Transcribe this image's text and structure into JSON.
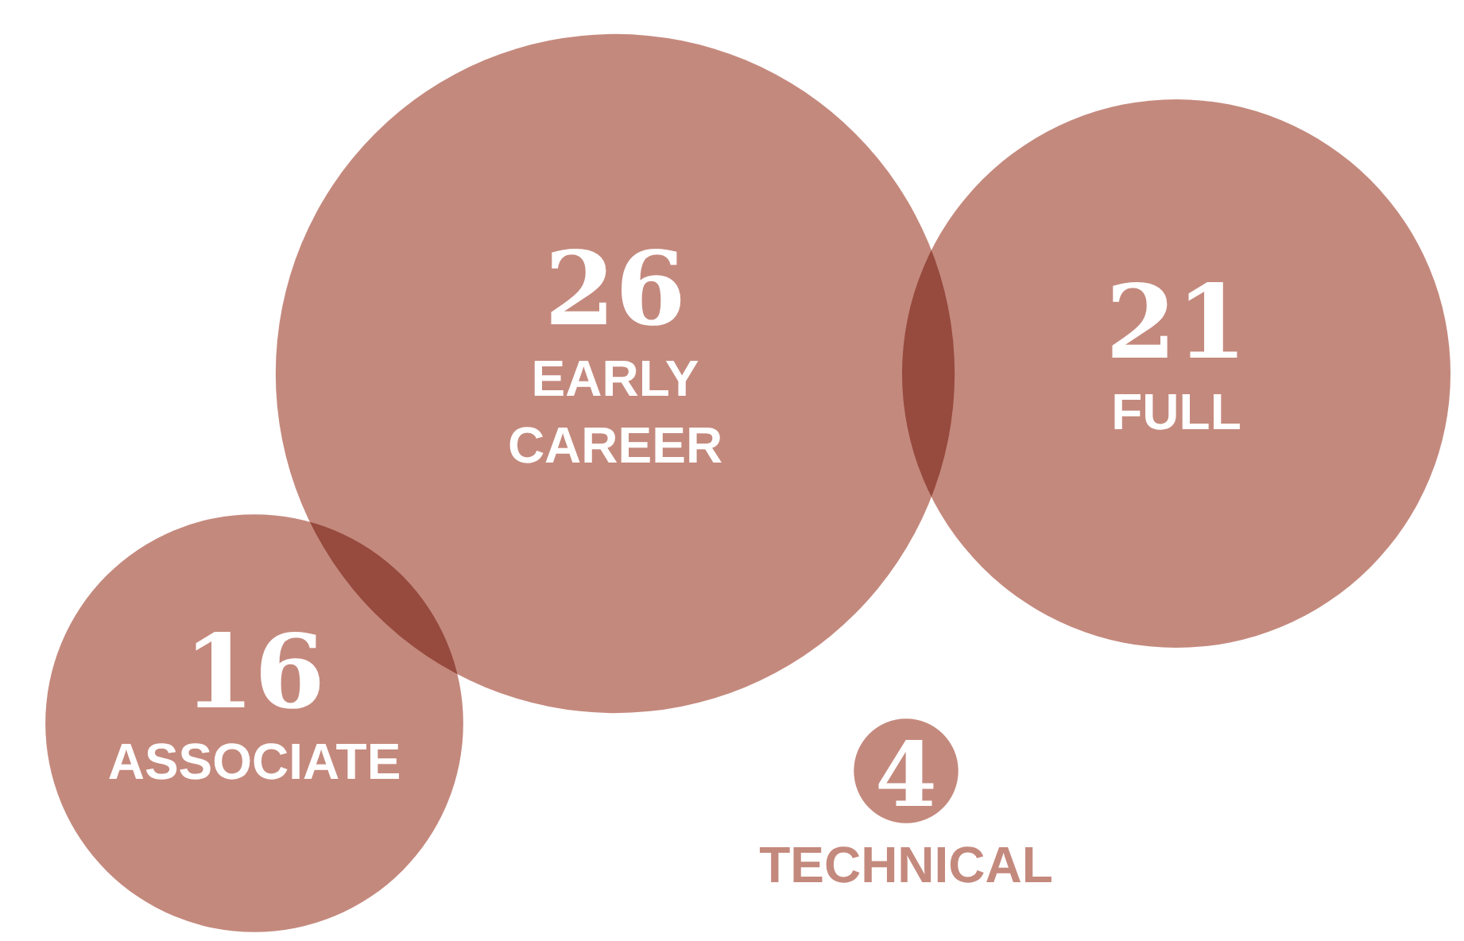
{
  "chart_data": {
    "type": "other",
    "categories": [
      "EARLY CAREER",
      "FULL",
      "ASSOCIATE",
      "TECHNICAL"
    ],
    "values": [
      26,
      21,
      16,
      4
    ],
    "colors": [
      "#c4897d",
      "#c4897d",
      "#c4897d",
      "#c4897d"
    ],
    "data_labels": true
  }
}
